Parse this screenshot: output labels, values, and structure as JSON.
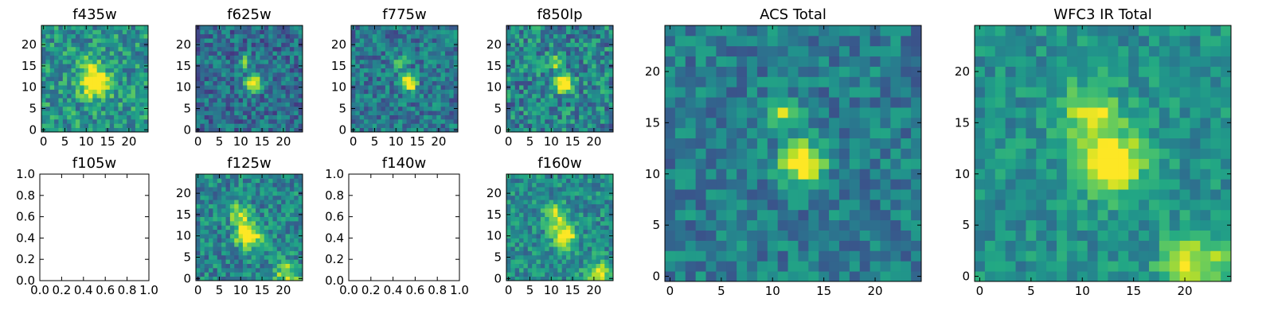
{
  "figure": {
    "background": "#ffffff",
    "colormap": "viridis",
    "colors": {
      "low": "#440154",
      "mid": "#21918c",
      "high": "#fde725"
    }
  },
  "chart_data": [
    {
      "type": "heatmap",
      "title": "f435w",
      "xlabel": "",
      "ylabel": "",
      "grid": false,
      "grid_size": [
        25,
        25
      ],
      "xlim": [
        -0.5,
        24.5
      ],
      "ylim": [
        -0.5,
        24.5
      ],
      "xticks": [
        0,
        5,
        10,
        15,
        20
      ],
      "xtick_labels": [
        "0",
        "5",
        "10",
        "15",
        "20"
      ],
      "yticks": [
        0,
        5,
        10,
        15,
        20
      ],
      "ytick_labels": [
        "0",
        "5",
        "10",
        "15",
        "20"
      ],
      "empty": false,
      "sources": [
        {
          "x": 12,
          "y": 11,
          "peak": 0.8,
          "sigma": 2.2
        },
        {
          "x": 11,
          "y": 15,
          "peak": 0.35,
          "sigma": 1.4
        }
      ],
      "background_level": 0.52,
      "noise": 0.22,
      "seed": 11
    },
    {
      "type": "heatmap",
      "title": "f625w",
      "xlabel": "",
      "ylabel": "",
      "grid": false,
      "grid_size": [
        25,
        25
      ],
      "xlim": [
        -0.5,
        24.5
      ],
      "ylim": [
        -0.5,
        24.5
      ],
      "xticks": [
        0,
        5,
        10,
        15,
        20
      ],
      "xtick_labels": [
        "0",
        "5",
        "10",
        "15",
        "20"
      ],
      "yticks": [
        0,
        5,
        10,
        15,
        20
      ],
      "ytick_labels": [
        "0",
        "5",
        "10",
        "15",
        "20"
      ],
      "empty": false,
      "sources": [
        {
          "x": 13,
          "y": 11,
          "peak": 0.95,
          "sigma": 1.2
        },
        {
          "x": 11,
          "y": 16,
          "peak": 0.45,
          "sigma": 1.0
        }
      ],
      "background_level": 0.36,
      "noise": 0.2,
      "seed": 23
    },
    {
      "type": "heatmap",
      "title": "f775w",
      "xlabel": "",
      "ylabel": "",
      "grid": false,
      "grid_size": [
        25,
        25
      ],
      "xlim": [
        -0.5,
        24.5
      ],
      "ylim": [
        -0.5,
        24.5
      ],
      "xticks": [
        0,
        5,
        10,
        15,
        20
      ],
      "xtick_labels": [
        "0",
        "5",
        "10",
        "15",
        "20"
      ],
      "yticks": [
        0,
        5,
        10,
        15,
        20
      ],
      "ytick_labels": [
        "0",
        "5",
        "10",
        "15",
        "20"
      ],
      "empty": false,
      "sources": [
        {
          "x": 13,
          "y": 11,
          "peak": 0.9,
          "sigma": 1.2
        },
        {
          "x": 11,
          "y": 16,
          "peak": 0.45,
          "sigma": 1.0
        }
      ],
      "background_level": 0.4,
      "noise": 0.2,
      "seed": 37
    },
    {
      "type": "heatmap",
      "title": "f850lp",
      "xlabel": "",
      "ylabel": "",
      "grid": false,
      "grid_size": [
        25,
        25
      ],
      "xlim": [
        -0.5,
        24.5
      ],
      "ylim": [
        -0.5,
        24.5
      ],
      "xticks": [
        0,
        5,
        10,
        15,
        20
      ],
      "xtick_labels": [
        "0",
        "5",
        "10",
        "15",
        "20"
      ],
      "yticks": [
        0,
        5,
        10,
        15,
        20
      ],
      "ytick_labels": [
        "0",
        "5",
        "10",
        "15",
        "20"
      ],
      "empty": false,
      "sources": [
        {
          "x": 13,
          "y": 11,
          "peak": 0.85,
          "sigma": 1.4
        },
        {
          "x": 11,
          "y": 16,
          "peak": 0.4,
          "sigma": 1.0
        }
      ],
      "background_level": 0.45,
      "noise": 0.24,
      "seed": 41
    },
    {
      "type": "heatmap",
      "title": "ACS Total",
      "xlabel": "",
      "ylabel": "",
      "grid": false,
      "grid_size": [
        25,
        25
      ],
      "xlim": [
        -0.5,
        24.5
      ],
      "ylim": [
        -0.5,
        24.5
      ],
      "xticks": [
        0,
        5,
        10,
        15,
        20
      ],
      "xtick_labels": [
        "0",
        "5",
        "10",
        "15",
        "20"
      ],
      "yticks": [
        0,
        5,
        10,
        15,
        20
      ],
      "ytick_labels": [
        "0",
        "5",
        "10",
        "15",
        "20"
      ],
      "empty": false,
      "sources": [
        {
          "x": 13,
          "y": 11,
          "peak": 0.85,
          "sigma": 1.3
        },
        {
          "x": 11,
          "y": 16,
          "peak": 0.45,
          "sigma": 1.1
        }
      ],
      "background_level": 0.42,
      "noise": 0.17,
      "seed": 53
    },
    {
      "type": "heatmap",
      "title": "WFC3 IR Total",
      "xlabel": "",
      "ylabel": "",
      "grid": false,
      "grid_size": [
        25,
        25
      ],
      "xlim": [
        -0.5,
        24.5
      ],
      "ylim": [
        -0.5,
        24.5
      ],
      "xticks": [
        0,
        5,
        10,
        15,
        20
      ],
      "xtick_labels": [
        "0",
        "5",
        "10",
        "15",
        "20"
      ],
      "yticks": [
        0,
        5,
        10,
        15,
        20
      ],
      "ytick_labels": [
        "0",
        "5",
        "10",
        "15",
        "20"
      ],
      "empty": false,
      "sources": [
        {
          "x": 13,
          "y": 11,
          "peak": 0.7,
          "sigma": 2.0
        },
        {
          "x": 11,
          "y": 16,
          "peak": 0.4,
          "sigma": 2.0
        },
        {
          "x": 21,
          "y": 1,
          "peak": 0.45,
          "sigma": 2.2
        }
      ],
      "background_level": 0.5,
      "noise": 0.14,
      "seed": 67
    },
    {
      "type": "heatmap",
      "title": "f105w",
      "xlabel": "",
      "ylabel": "",
      "grid": false,
      "grid_size": [
        0,
        0
      ],
      "xlim": [
        0.0,
        1.0
      ],
      "ylim": [
        0.0,
        1.0
      ],
      "xticks": [
        0.0,
        0.2,
        0.4,
        0.6,
        0.8,
        1.0
      ],
      "xtick_labels": [
        "0.0",
        "0.2",
        "0.4",
        "0.6",
        "0.8",
        "1.0"
      ],
      "yticks": [
        0.0,
        0.2,
        0.4,
        0.6,
        0.8,
        1.0
      ],
      "ytick_labels": [
        "0.0",
        "0.2",
        "0.4",
        "0.6",
        "0.8",
        "1.0"
      ],
      "empty": true,
      "sources": [],
      "background_level": 0,
      "noise": 0,
      "seed": 0
    },
    {
      "type": "heatmap",
      "title": "f125w",
      "xlabel": "",
      "ylabel": "",
      "grid": false,
      "grid_size": [
        25,
        25
      ],
      "xlim": [
        -0.5,
        24.5
      ],
      "ylim": [
        -0.5,
        24.5
      ],
      "xticks": [
        0,
        5,
        10,
        15,
        20
      ],
      "xtick_labels": [
        "0",
        "5",
        "10",
        "15",
        "20"
      ],
      "yticks": [
        0,
        5,
        10,
        15,
        20
      ],
      "ytick_labels": [
        "0",
        "5",
        "10",
        "15",
        "20"
      ],
      "empty": false,
      "sources": [
        {
          "x": 12,
          "y": 10,
          "peak": 0.75,
          "sigma": 2.0
        },
        {
          "x": 10,
          "y": 15,
          "peak": 0.45,
          "sigma": 1.8
        },
        {
          "x": 21,
          "y": 1,
          "peak": 0.45,
          "sigma": 2.0
        }
      ],
      "background_level": 0.45,
      "noise": 0.2,
      "seed": 79
    },
    {
      "type": "heatmap",
      "title": "f140w",
      "xlabel": "",
      "ylabel": "",
      "grid": false,
      "grid_size": [
        0,
        0
      ],
      "xlim": [
        0.0,
        1.0
      ],
      "ylim": [
        0.0,
        1.0
      ],
      "xticks": [
        0.0,
        0.2,
        0.4,
        0.6,
        0.8,
        1.0
      ],
      "xtick_labels": [
        "0.0",
        "0.2",
        "0.4",
        "0.6",
        "0.8",
        "1.0"
      ],
      "yticks": [
        0.0,
        0.2,
        0.4,
        0.6,
        0.8,
        1.0
      ],
      "ytick_labels": [
        "0.0",
        "0.2",
        "0.4",
        "0.6",
        "0.8",
        "1.0"
      ],
      "empty": true,
      "sources": [],
      "background_level": 0,
      "noise": 0,
      "seed": 0
    },
    {
      "type": "heatmap",
      "title": "f160w",
      "xlabel": "",
      "ylabel": "",
      "grid": false,
      "grid_size": [
        25,
        25
      ],
      "xlim": [
        -0.5,
        24.5
      ],
      "ylim": [
        -0.5,
        24.5
      ],
      "xticks": [
        0,
        5,
        10,
        15,
        20
      ],
      "xtick_labels": [
        "0",
        "5",
        "10",
        "15",
        "20"
      ],
      "yticks": [
        0,
        5,
        10,
        15,
        20
      ],
      "ytick_labels": [
        "0",
        "5",
        "10",
        "15",
        "20"
      ],
      "empty": false,
      "sources": [
        {
          "x": 13,
          "y": 10,
          "peak": 0.7,
          "sigma": 1.8
        },
        {
          "x": 11,
          "y": 15,
          "peak": 0.45,
          "sigma": 1.8
        },
        {
          "x": 21,
          "y": 1,
          "peak": 0.5,
          "sigma": 2.0
        }
      ],
      "background_level": 0.48,
      "noise": 0.18,
      "seed": 97
    }
  ]
}
